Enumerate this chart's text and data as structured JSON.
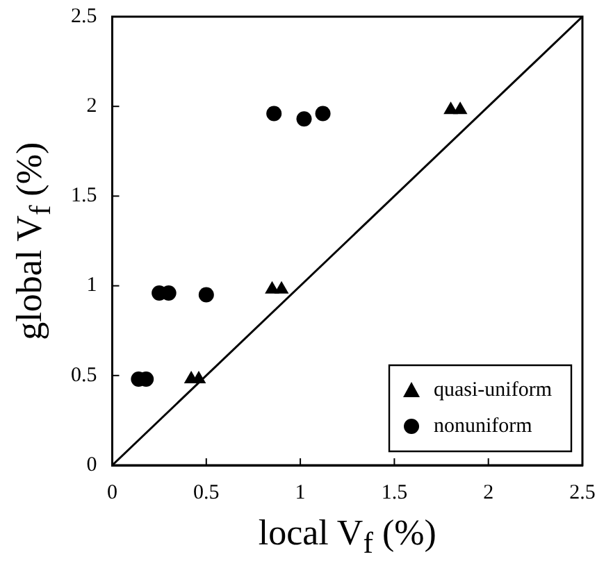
{
  "chart_data": {
    "type": "scatter",
    "xlabel": "local V$_{f}$ (%)",
    "ylabel": "global V$_{f}$ (%)",
    "xlim": [
      0,
      2.5
    ],
    "xticks": [
      0,
      0.5,
      1,
      1.5,
      2,
      2.5
    ],
    "ylim": [
      0,
      2.5
    ],
    "yticks": [
      0,
      0.5,
      1,
      1.5,
      2,
      2.5
    ],
    "grid": false,
    "legend": "bottom right",
    "series": [
      {
        "name": "quasi-uniform",
        "color": "#000000",
        "marker": "triangle",
        "x": [
          0.42,
          0.46,
          0.85,
          0.9,
          1.8,
          1.85
        ],
        "values": [
          0.48,
          0.48,
          0.98,
          0.98,
          1.98,
          1.98
        ]
      },
      {
        "name": "nonuniform",
        "color": "#000000",
        "marker": "circle",
        "x": [
          0.14,
          0.18,
          0.25,
          0.3,
          0.5,
          0.86,
          1.02,
          1.12
        ],
        "values": [
          0.48,
          0.48,
          0.96,
          0.96,
          0.95,
          1.96,
          1.93,
          1.96
        ]
      },
      {
        "type": "line",
        "color": "#000000",
        "marker": "none",
        "line_style": "solid",
        "x": [
          0,
          2.5
        ],
        "values": [
          0,
          2.5
        ]
      }
    ]
  }
}
